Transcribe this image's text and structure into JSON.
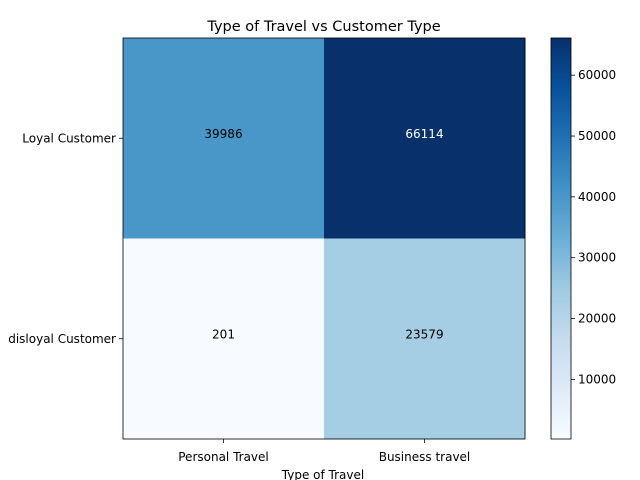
{
  "chart_data": {
    "type": "heatmap",
    "title": "Type of Travel vs Customer Type",
    "xlabel": "Type of Travel",
    "ylabel": "",
    "x_categories": [
      "Personal Travel",
      "Business travel"
    ],
    "y_categories": [
      "Loyal Customer",
      "disloyal Customer"
    ],
    "values": [
      [
        39986,
        66114
      ],
      [
        201,
        23579
      ]
    ],
    "value_labels": [
      [
        "39986",
        "66114"
      ],
      [
        "201",
        "23579"
      ]
    ],
    "colormap": "Blues",
    "colorbar": {
      "range": [
        201,
        66114
      ],
      "ticks": [
        10000,
        20000,
        30000,
        40000,
        50000,
        60000
      ],
      "tick_labels": [
        "10000",
        "20000",
        "30000",
        "40000",
        "50000",
        "60000"
      ]
    },
    "grid": false
  }
}
